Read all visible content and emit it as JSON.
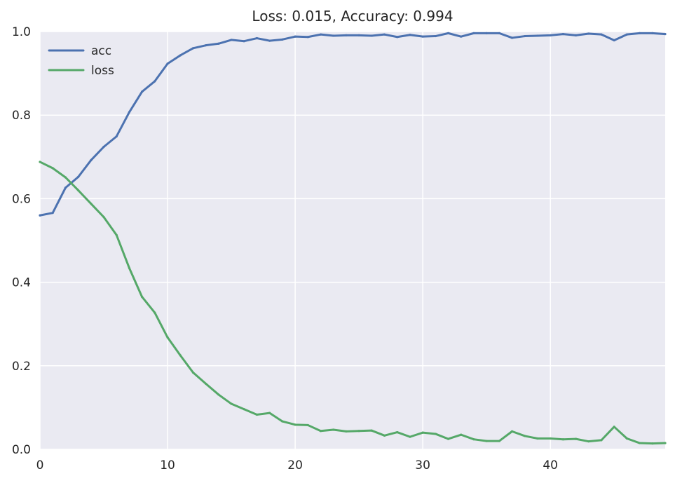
{
  "chart_data": {
    "type": "line",
    "title": "Loss: 0.015, Accuracy: 0.994",
    "xlabel": "",
    "ylabel": "",
    "xlim": [
      0,
      49
    ],
    "ylim": [
      0.0,
      1.0
    ],
    "xticks": [
      0,
      10,
      20,
      30,
      40
    ],
    "xtick_labels": [
      "0",
      "10",
      "20",
      "30",
      "40"
    ],
    "yticks": [
      0.0,
      0.2,
      0.4,
      0.6,
      0.8,
      1.0
    ],
    "ytick_labels": [
      "0.0",
      "0.2",
      "0.4",
      "0.6",
      "0.8",
      "1.0"
    ],
    "grid": true,
    "legend_position": "top-left",
    "background_color": "#eaeaf2",
    "grid_color": "#ffffff",
    "x": [
      0,
      1,
      2,
      3,
      4,
      5,
      6,
      7,
      8,
      9,
      10,
      11,
      12,
      13,
      14,
      15,
      16,
      17,
      18,
      19,
      20,
      21,
      22,
      23,
      24,
      25,
      26,
      27,
      28,
      29,
      30,
      31,
      32,
      33,
      34,
      35,
      36,
      37,
      38,
      39,
      40,
      41,
      42,
      43,
      44,
      45,
      46,
      47,
      48,
      49
    ],
    "series": [
      {
        "name": "acc",
        "color": "#4c72b0",
        "values": [
          0.56,
          0.566,
          0.626,
          0.652,
          0.692,
          0.724,
          0.749,
          0.807,
          0.856,
          0.881,
          0.923,
          0.943,
          0.96,
          0.967,
          0.971,
          0.98,
          0.977,
          0.984,
          0.978,
          0.981,
          0.988,
          0.987,
          0.993,
          0.99,
          0.991,
          0.991,
          0.99,
          0.993,
          0.987,
          0.992,
          0.988,
          0.989,
          0.996,
          0.988,
          0.996,
          0.996,
          0.996,
          0.985,
          0.989,
          0.99,
          0.991,
          0.994,
          0.991,
          0.995,
          0.993,
          0.979,
          0.993,
          0.996,
          0.996,
          0.994
        ]
      },
      {
        "name": "loss",
        "color": "#55a868",
        "values": [
          0.688,
          0.673,
          0.651,
          0.62,
          0.588,
          0.556,
          0.513,
          0.434,
          0.365,
          0.327,
          0.268,
          0.225,
          0.184,
          0.157,
          0.131,
          0.109,
          0.096,
          0.083,
          0.087,
          0.067,
          0.059,
          0.058,
          0.044,
          0.047,
          0.043,
          0.044,
          0.045,
          0.033,
          0.041,
          0.03,
          0.04,
          0.037,
          0.025,
          0.035,
          0.024,
          0.02,
          0.02,
          0.043,
          0.032,
          0.026,
          0.026,
          0.024,
          0.025,
          0.019,
          0.022,
          0.054,
          0.026,
          0.015,
          0.014,
          0.015
        ]
      }
    ]
  }
}
